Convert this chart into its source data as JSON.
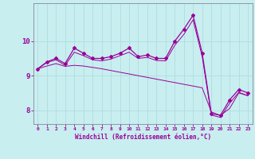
{
  "xlabel": "Windchill (Refroidissement éolien,°C)",
  "xlim": [
    -0.5,
    23.5
  ],
  "ylim": [
    7.6,
    11.1
  ],
  "yticks": [
    8,
    9,
    10
  ],
  "xticks": [
    0,
    1,
    2,
    3,
    4,
    5,
    6,
    7,
    8,
    9,
    10,
    11,
    12,
    13,
    14,
    15,
    16,
    17,
    18,
    19,
    20,
    21,
    22,
    23
  ],
  "bg_color": "#c8eef0",
  "line_color": "#990099",
  "grid_color": "#b0dde0",
  "line1": [
    9.2,
    9.4,
    9.5,
    9.35,
    9.8,
    9.65,
    9.5,
    9.5,
    9.55,
    9.65,
    9.8,
    9.55,
    9.6,
    9.5,
    9.5,
    10.0,
    10.35,
    10.75,
    9.65,
    7.9,
    7.85,
    8.3,
    8.6,
    8.5
  ],
  "line2": [
    9.2,
    9.38,
    9.46,
    9.3,
    9.68,
    9.58,
    9.46,
    9.43,
    9.48,
    9.58,
    9.68,
    9.5,
    9.53,
    9.44,
    9.43,
    9.88,
    10.2,
    10.62,
    9.55,
    7.86,
    7.79,
    8.2,
    8.52,
    8.42
  ],
  "line3": [
    9.2,
    9.28,
    9.35,
    9.27,
    9.3,
    9.28,
    9.24,
    9.2,
    9.15,
    9.1,
    9.05,
    9.0,
    8.95,
    8.9,
    8.85,
    8.8,
    8.75,
    8.7,
    8.65,
    7.95,
    7.85,
    8.05,
    8.5,
    8.42
  ]
}
